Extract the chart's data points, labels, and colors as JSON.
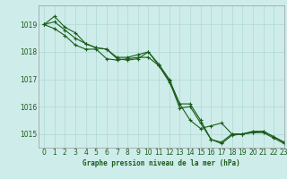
{
  "title": "Graphe pression niveau de la mer (hPa)",
  "background_color": "#ceecea",
  "grid_color": "#aed8d4",
  "line_color": "#1a5c1a",
  "marker_color": "#1a5c1a",
  "xlim": [
    -0.5,
    23
  ],
  "ylim": [
    1014.5,
    1019.7
  ],
  "yticks": [
    1015,
    1016,
    1017,
    1018,
    1019
  ],
  "xticks": [
    0,
    1,
    2,
    3,
    4,
    5,
    6,
    7,
    8,
    9,
    10,
    11,
    12,
    13,
    14,
    15,
    16,
    17,
    18,
    19,
    20,
    21,
    22,
    23
  ],
  "series": [
    [
      1019.0,
      1019.3,
      1018.9,
      1018.7,
      1018.3,
      1018.15,
      1018.1,
      1017.75,
      1017.7,
      1017.75,
      1018.0,
      1017.55,
      1017.0,
      1016.1,
      1016.1,
      1015.5,
      1014.8,
      1014.7,
      1015.0,
      1015.0,
      1015.1,
      1015.1,
      1014.9,
      1014.7
    ],
    [
      1019.0,
      1018.85,
      1018.6,
      1018.25,
      1018.1,
      1018.1,
      1017.75,
      1017.7,
      1017.75,
      1017.8,
      1017.8,
      1017.5,
      1016.95,
      1015.95,
      1016.0,
      1015.4,
      1014.8,
      1014.65,
      1014.95,
      1015.0,
      1015.05,
      1015.05,
      1014.85,
      1014.65
    ],
    [
      1019.0,
      1019.1,
      1018.8,
      1018.5,
      1018.3,
      1018.15,
      1018.1,
      1017.8,
      1017.8,
      1017.9,
      1018.0,
      1017.5,
      1016.9,
      1016.1,
      1015.5,
      1015.2,
      1015.3,
      1015.4,
      1015.0,
      1015.0,
      1015.05,
      1015.1,
      1014.9,
      1014.7
    ]
  ],
  "title_fontsize": 5.5,
  "tick_labelsize": 5.5,
  "linewidth": 0.8,
  "markersize": 3.5
}
